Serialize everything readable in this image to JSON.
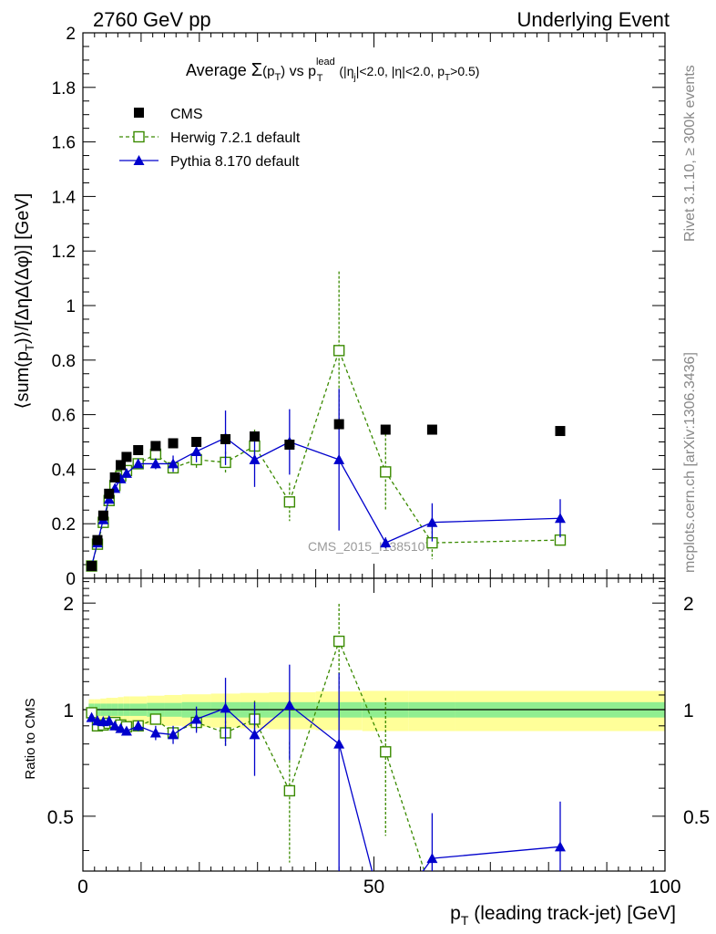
{
  "header": {
    "left": "2760 GeV pp",
    "right": "Underlying Event"
  },
  "side_labels": {
    "rivet": "Rivet 3.1.10, ≥ 300k events",
    "mcplots": "mcplots.cern.ch [arXiv:1306.3436]"
  },
  "watermark": "CMS_2015_I1385107",
  "title": {
    "pre": "Average ",
    "sigma": "Σ",
    "pt_open": "(p",
    "pt_sub": "T",
    "pt_close": ")",
    "vs": " vs p",
    "lead_sup": "lead",
    "lead_sub": "T",
    "cuts_1": " (|η",
    "cuts_j": "j",
    "cuts_2": "|<2.0, |η|<2.0, p",
    "cuts_t": "T",
    "cuts_3": ">0.5)"
  },
  "colors": {
    "cms": "#000000",
    "herwig": "#3a8a00",
    "pythia": "#0000cc",
    "band_inner": "#90ee90",
    "band_outer": "#ffff99"
  },
  "chart_data": {
    "type": "scatter",
    "main": {
      "xlim": [
        0,
        100
      ],
      "ylim": [
        0,
        2
      ],
      "xlabel": "p_T (leading track-jet) [GeV]",
      "ylabel": "⟨sum(p_T)⟩/[ΔηΔ(Δφ)] [GeV]",
      "yticks": [
        0,
        0.2,
        0.4,
        0.6,
        0.8,
        1,
        1.2,
        1.4,
        1.6,
        1.8,
        2
      ],
      "ytick_labels": [
        "0",
        "0.2",
        "0.4",
        "0.6",
        "0.8",
        "1",
        "1.2",
        "1.4",
        "1.6",
        "1.8",
        "2"
      ]
    },
    "ratio": {
      "ylim": [
        0.35,
        2.35
      ],
      "ylabel": "Ratio to CMS",
      "yticks": [
        0.5,
        1,
        2
      ],
      "ytick_labels": [
        "0.5",
        "1",
        "2"
      ]
    },
    "xticks": [
      0,
      50,
      100
    ],
    "xtick_labels": [
      "0",
      "50",
      "100"
    ],
    "legend": {
      "position": "top-left",
      "entries": [
        "CMS",
        "Herwig 7.2.1 default",
        "Pythia 8.170 default"
      ]
    },
    "series": [
      {
        "name": "CMS",
        "style": "square-filled",
        "x": [
          1.5,
          2.5,
          3.5,
          4.5,
          5.5,
          6.5,
          7.5,
          9.5,
          12.5,
          15.5,
          19.5,
          24.5,
          29.5,
          35.5,
          44.0,
          52.0,
          60.0,
          82.0
        ],
        "y": [
          0.045,
          0.14,
          0.23,
          0.31,
          0.37,
          0.415,
          0.445,
          0.47,
          0.485,
          0.495,
          0.5,
          0.51,
          0.52,
          0.49,
          0.565,
          0.545,
          0.545,
          0.54
        ]
      },
      {
        "name": "Herwig 7.2.1 default",
        "style": "square-open-dashed",
        "x": [
          1.5,
          2.5,
          3.5,
          4.5,
          5.5,
          6.5,
          7.5,
          9.5,
          12.5,
          15.5,
          19.5,
          24.5,
          29.5,
          35.5,
          44.0,
          52.0,
          60.0,
          82.0
        ],
        "y": [
          0.045,
          0.125,
          0.205,
          0.285,
          0.34,
          0.375,
          0.395,
          0.42,
          0.455,
          0.405,
          0.435,
          0.425,
          0.485,
          0.28,
          0.835,
          0.39,
          0.13,
          0.14
        ],
        "err": [
          0.005,
          0.01,
          0.01,
          0.01,
          0.01,
          0.012,
          0.012,
          0.015,
          0.02,
          0.02,
          0.03,
          0.04,
          0.06,
          0.07,
          0.29,
          0.14,
          0.06,
          0.02
        ],
        "ratio": [
          0.98,
          0.9,
          0.905,
          0.915,
          0.92,
          0.905,
          0.895,
          0.9,
          0.94,
          0.86,
          0.92,
          0.86,
          0.94,
          0.59,
          1.56,
          0.76,
          0.3,
          0.3
        ],
        "ratio_err": [
          0.02,
          0.03,
          0.03,
          0.02,
          0.02,
          0.02,
          0.02,
          0.02,
          0.03,
          0.03,
          0.05,
          0.07,
          0.12,
          0.22,
          0.43,
          0.32,
          0.0,
          0.0
        ]
      },
      {
        "name": "Pythia 8.170 default",
        "style": "triangle-filled-solid",
        "x": [
          1.5,
          2.5,
          3.5,
          4.5,
          5.5,
          6.5,
          7.5,
          9.5,
          12.5,
          15.5,
          19.5,
          24.5,
          29.5,
          35.5,
          44.0,
          52.0,
          60.0,
          82.0
        ],
        "y": [
          0.045,
          0.13,
          0.215,
          0.29,
          0.33,
          0.365,
          0.385,
          0.42,
          0.42,
          0.42,
          0.465,
          0.515,
          0.435,
          0.5,
          0.435,
          0.13,
          0.205,
          0.22
        ],
        "err": [
          0.005,
          0.01,
          0.01,
          0.01,
          0.01,
          0.012,
          0.012,
          0.015,
          0.02,
          0.03,
          0.04,
          0.1,
          0.1,
          0.12,
          0.26,
          0.02,
          0.07,
          0.07
        ],
        "ratio": [
          0.95,
          0.93,
          0.925,
          0.93,
          0.9,
          0.885,
          0.87,
          0.9,
          0.86,
          0.85,
          0.94,
          1.01,
          0.85,
          1.03,
          0.8,
          0.25,
          0.38,
          0.41
        ],
        "ratio_err": [
          0.02,
          0.03,
          0.03,
          0.03,
          0.02,
          0.02,
          0.02,
          0.03,
          0.04,
          0.05,
          0.08,
          0.22,
          0.2,
          0.31,
          0.47,
          0.0,
          0.13,
          0.14
        ]
      }
    ],
    "uncertainty_band": {
      "x_edges": [
        1,
        2,
        3,
        4,
        5,
        6,
        7,
        8,
        11,
        14,
        17,
        22,
        27,
        32,
        40,
        48,
        56,
        64,
        100
      ],
      "inner": [
        0.04,
        0.04,
        0.04,
        0.04,
        0.04,
        0.04,
        0.04,
        0.04,
        0.045,
        0.045,
        0.05,
        0.05,
        0.05,
        0.05,
        0.05,
        0.05,
        0.05,
        0.05
      ],
      "outer": [
        0.07,
        0.07,
        0.075,
        0.08,
        0.08,
        0.085,
        0.09,
        0.09,
        0.095,
        0.1,
        0.105,
        0.11,
        0.115,
        0.12,
        0.125,
        0.13,
        0.13,
        0.13
      ]
    }
  }
}
